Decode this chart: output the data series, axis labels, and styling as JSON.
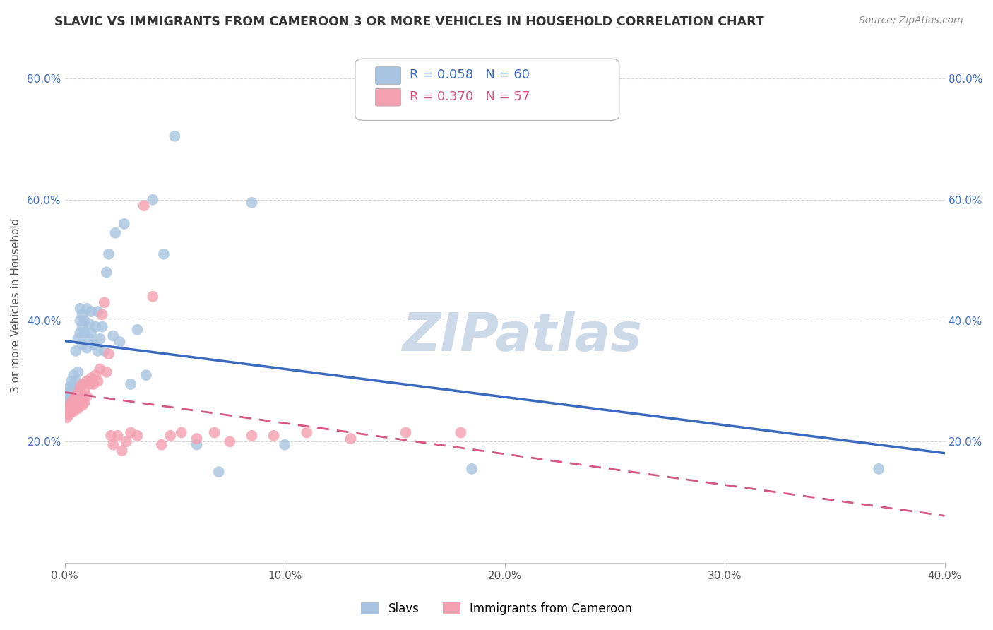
{
  "title": "SLAVIC VS IMMIGRANTS FROM CAMEROON 3 OR MORE VEHICLES IN HOUSEHOLD CORRELATION CHART",
  "source": "Source: ZipAtlas.com",
  "ylabel": "3 or more Vehicles in Household",
  "xlim": [
    0.0,
    0.4
  ],
  "ylim": [
    0.0,
    0.85
  ],
  "xticks": [
    0.0,
    0.1,
    0.2,
    0.3,
    0.4
  ],
  "yticks": [
    0.2,
    0.4,
    0.6,
    0.8
  ],
  "xticklabels": [
    "0.0%",
    "10.0%",
    "20.0%",
    "30.0%",
    "40.0%"
  ],
  "yticklabels": [
    "20.0%",
    "40.0%",
    "60.0%",
    "80.0%"
  ],
  "legend_labels": [
    "Slavs",
    "Immigrants from Cameroon"
  ],
  "slavs_R": "0.058",
  "slavs_N": "60",
  "cameroon_R": "0.370",
  "cameroon_N": "57",
  "slavs_color": "#a8c4e0",
  "cameroon_color": "#f4a0b0",
  "slavs_line_color": "#3a6abf",
  "cameroon_line_color": "#d45880",
  "watermark": "ZIPatlas",
  "watermark_color": "#ccd9e8",
  "background_color": "#ffffff",
  "grid_color": "#d0d0d0",
  "slavs_x": [
    0.001,
    0.001,
    0.002,
    0.002,
    0.002,
    0.003,
    0.003,
    0.003,
    0.003,
    0.004,
    0.004,
    0.004,
    0.004,
    0.005,
    0.005,
    0.005,
    0.005,
    0.006,
    0.006,
    0.006,
    0.006,
    0.007,
    0.007,
    0.007,
    0.008,
    0.008,
    0.008,
    0.009,
    0.009,
    0.01,
    0.01,
    0.011,
    0.011,
    0.012,
    0.012,
    0.013,
    0.014,
    0.015,
    0.015,
    0.016,
    0.017,
    0.018,
    0.019,
    0.02,
    0.022,
    0.023,
    0.025,
    0.027,
    0.03,
    0.033,
    0.037,
    0.04,
    0.045,
    0.05,
    0.06,
    0.07,
    0.085,
    0.1,
    0.185,
    0.37
  ],
  "slavs_y": [
    0.27,
    0.28,
    0.265,
    0.275,
    0.29,
    0.26,
    0.27,
    0.285,
    0.3,
    0.265,
    0.275,
    0.29,
    0.31,
    0.27,
    0.28,
    0.3,
    0.35,
    0.275,
    0.29,
    0.315,
    0.37,
    0.38,
    0.4,
    0.42,
    0.36,
    0.39,
    0.41,
    0.38,
    0.4,
    0.355,
    0.42,
    0.37,
    0.395,
    0.38,
    0.415,
    0.36,
    0.39,
    0.35,
    0.415,
    0.37,
    0.39,
    0.35,
    0.48,
    0.51,
    0.375,
    0.545,
    0.365,
    0.56,
    0.295,
    0.385,
    0.31,
    0.6,
    0.51,
    0.705,
    0.195,
    0.15,
    0.595,
    0.195,
    0.155,
    0.155
  ],
  "cameroon_x": [
    0.001,
    0.001,
    0.002,
    0.002,
    0.003,
    0.003,
    0.003,
    0.004,
    0.004,
    0.004,
    0.005,
    0.005,
    0.005,
    0.006,
    0.006,
    0.006,
    0.007,
    0.007,
    0.007,
    0.008,
    0.008,
    0.008,
    0.009,
    0.009,
    0.01,
    0.01,
    0.011,
    0.012,
    0.013,
    0.014,
    0.015,
    0.016,
    0.017,
    0.018,
    0.019,
    0.02,
    0.021,
    0.022,
    0.024,
    0.026,
    0.028,
    0.03,
    0.033,
    0.036,
    0.04,
    0.044,
    0.048,
    0.053,
    0.06,
    0.068,
    0.075,
    0.085,
    0.095,
    0.11,
    0.13,
    0.155,
    0.18
  ],
  "cameroon_y": [
    0.24,
    0.255,
    0.245,
    0.258,
    0.25,
    0.26,
    0.265,
    0.25,
    0.26,
    0.27,
    0.255,
    0.265,
    0.275,
    0.255,
    0.265,
    0.28,
    0.26,
    0.27,
    0.29,
    0.26,
    0.27,
    0.295,
    0.265,
    0.285,
    0.275,
    0.3,
    0.295,
    0.305,
    0.295,
    0.31,
    0.3,
    0.32,
    0.41,
    0.43,
    0.315,
    0.345,
    0.21,
    0.195,
    0.21,
    0.185,
    0.2,
    0.215,
    0.21,
    0.59,
    0.44,
    0.195,
    0.21,
    0.215,
    0.205,
    0.215,
    0.2,
    0.21,
    0.21,
    0.215,
    0.205,
    0.215,
    0.215
  ]
}
